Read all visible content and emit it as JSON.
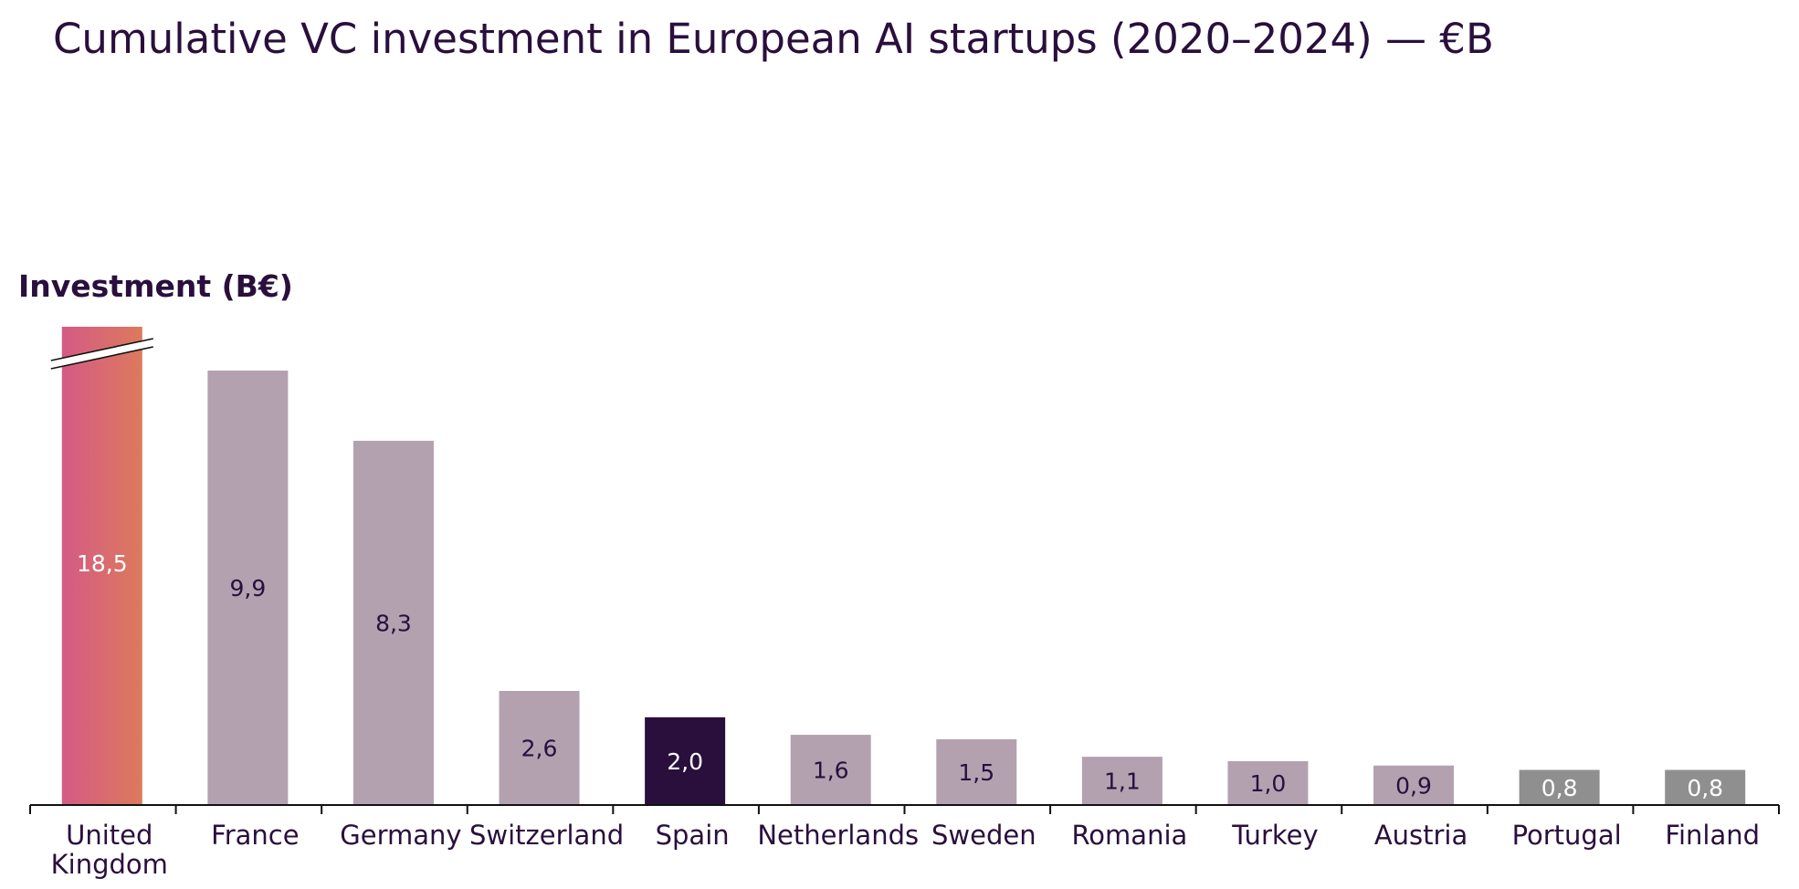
{
  "chart_data": {
    "type": "bar",
    "title": "Cumulative VC investment in European AI startups (2020–2024) — €B",
    "ylabel": "Investment (B€)",
    "xlabel": "",
    "categories": [
      "United Kingdom",
      "France",
      "Germany",
      "Switzerland",
      "Spain",
      "Netherlands",
      "Sweden",
      "Romania",
      "Turkey",
      "Austria",
      "Portugal",
      "Finland"
    ],
    "values": [
      18.5,
      9.9,
      8.3,
      2.6,
      2.0,
      1.6,
      1.5,
      1.1,
      1.0,
      0.9,
      0.8,
      0.8
    ],
    "value_labels": [
      "18,5",
      "9,9",
      "8,3",
      "2,6",
      "2,0",
      "1,6",
      "1,5",
      "1,1",
      "1,0",
      "0,9",
      "0,8",
      "0,8"
    ],
    "ylim": [
      0,
      11
    ],
    "broken_axis_bar": "United Kingdom",
    "grid": false,
    "colors": {
      "highlight_gradient": [
        "#d45a85",
        "#dc7a5c"
      ],
      "focus": "#2a0f3d",
      "default": "#b3a1b0",
      "small": "#8f8f8f",
      "label_dark": "#2a0f3d",
      "label_light": "#ffffff"
    },
    "bar_style": [
      "highlight",
      "default",
      "default",
      "default",
      "focus",
      "default",
      "default",
      "default",
      "default",
      "default",
      "small",
      "small"
    ]
  }
}
